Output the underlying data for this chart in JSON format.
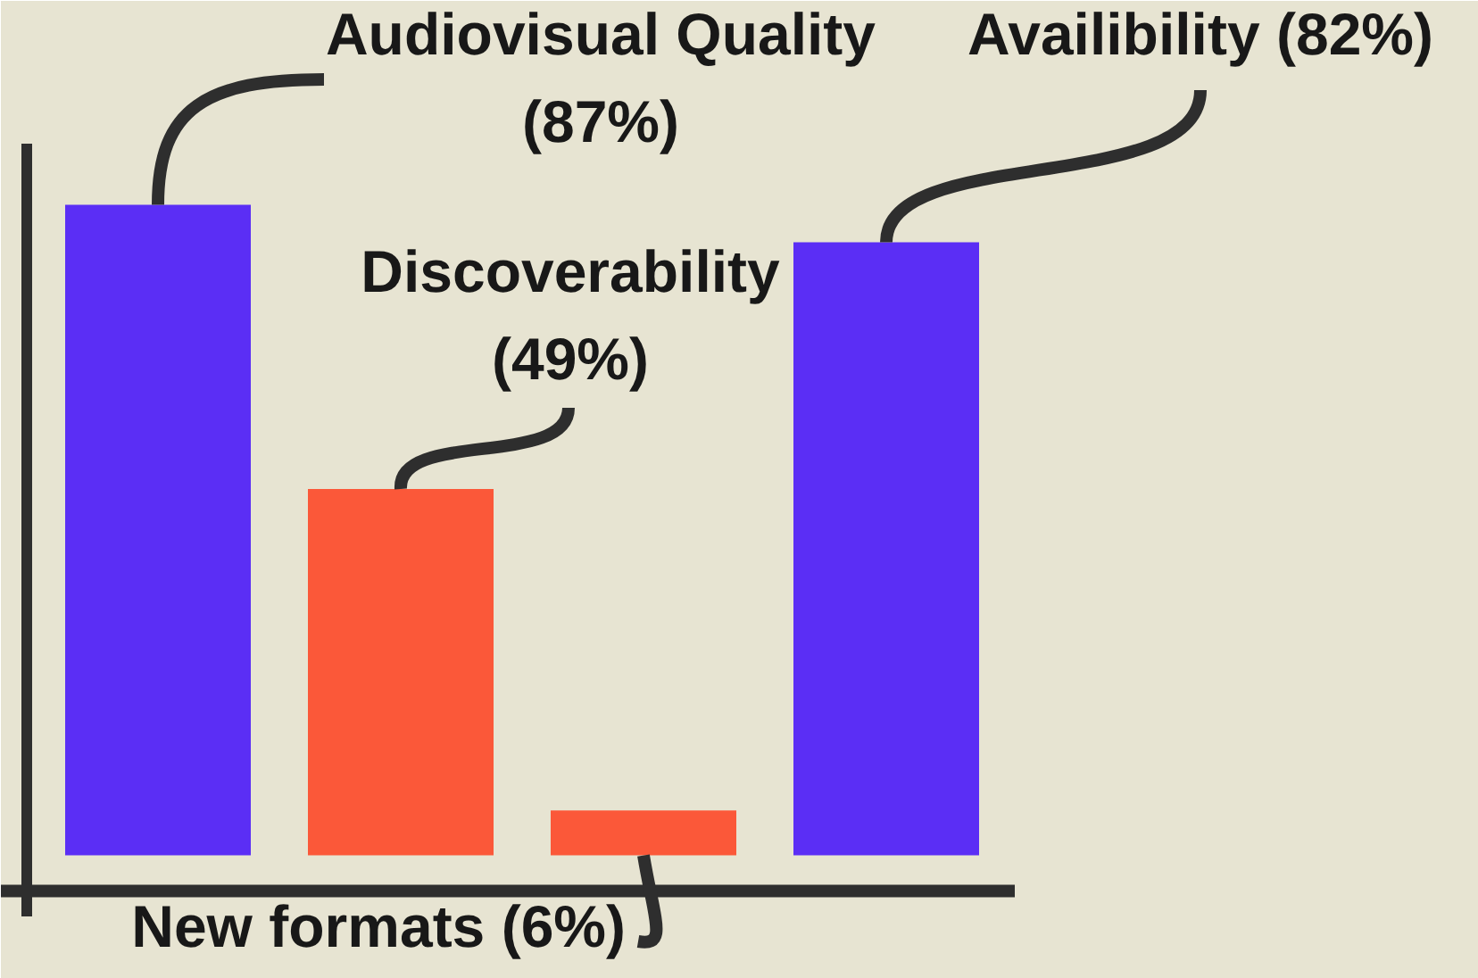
{
  "chart_data": {
    "type": "bar",
    "categories": [
      null,
      null,
      null,
      null
    ],
    "values": [
      87,
      49,
      6,
      82
    ],
    "colors": [
      "#5b2ef5",
      "#fb5839",
      "#fb5839",
      "#5b2ef5"
    ],
    "value_labels": [
      "Audiovisual Quality (87%)",
      "Discoverability (49%)",
      "New formats (6%)",
      "Availibility (82%)"
    ]
  }
}
